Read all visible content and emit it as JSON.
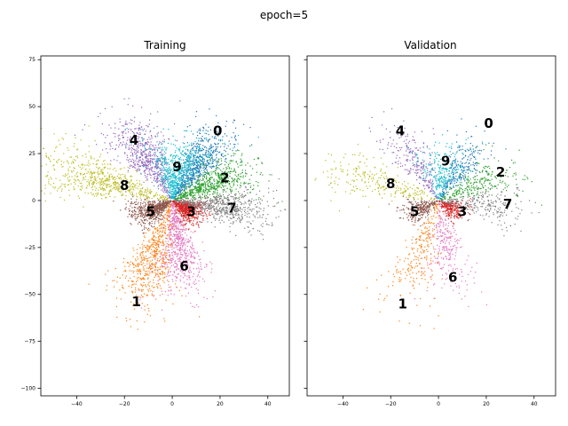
{
  "suptitle": "epoch=5",
  "colors": [
    "#1f77b4",
    "#ff7f0e",
    "#2ca02c",
    "#d62728",
    "#9467bd",
    "#8c564b",
    "#e377c2",
    "#7f7f7f",
    "#bcbd22",
    "#17becf"
  ],
  "chart_data": [
    {
      "type": "scatter",
      "title": "Training",
      "xlim": [
        -55,
        49
      ],
      "ylim": [
        -104,
        77
      ],
      "xticks": [
        -40,
        -20,
        0,
        20,
        40
      ],
      "yticks": [
        75,
        50,
        25,
        0,
        -25,
        -50,
        -75,
        -100
      ],
      "grid": false,
      "clusters": [
        {
          "label": "0",
          "center": [
            20,
            35
          ]
        },
        {
          "label": "1",
          "center": [
            -15,
            -55
          ]
        },
        {
          "label": "2",
          "center": [
            22,
            12
          ]
        },
        {
          "label": "3",
          "center": [
            8,
            -6
          ]
        },
        {
          "label": "4",
          "center": [
            -15,
            32
          ]
        },
        {
          "label": "5",
          "center": [
            -10,
            -6
          ]
        },
        {
          "label": "6",
          "center": [
            4,
            -35
          ]
        },
        {
          "label": "7",
          "center": [
            25,
            -4
          ]
        },
        {
          "label": "8",
          "center": [
            -22,
            8
          ]
        },
        {
          "label": "9",
          "center": [
            2,
            18
          ]
        }
      ],
      "label_positions": [
        [
          19,
          37
        ],
        [
          -15,
          -54
        ],
        [
          22,
          12
        ],
        [
          8,
          -6
        ],
        [
          -16,
          32
        ],
        [
          -9,
          -6
        ],
        [
          5,
          -35
        ],
        [
          25,
          -4
        ],
        [
          -20,
          8
        ],
        [
          2,
          18
        ]
      ]
    },
    {
      "type": "scatter",
      "title": "Validation",
      "xlim": [
        -55,
        49
      ],
      "ylim": [
        -104,
        77
      ],
      "xticks": [
        -40,
        -20,
        0,
        20,
        40
      ],
      "yticks": [
        75,
        50,
        25,
        0,
        -25,
        -50,
        -75,
        -100
      ],
      "grid": false,
      "clusters": [
        {
          "label": "0",
          "center": [
            20,
            35
          ]
        },
        {
          "label": "1",
          "center": [
            -15,
            -55
          ]
        },
        {
          "label": "2",
          "center": [
            22,
            12
          ]
        },
        {
          "label": "3",
          "center": [
            8,
            -6
          ]
        },
        {
          "label": "4",
          "center": [
            -15,
            32
          ]
        },
        {
          "label": "5",
          "center": [
            -10,
            -6
          ]
        },
        {
          "label": "6",
          "center": [
            4,
            -35
          ]
        },
        {
          "label": "7",
          "center": [
            25,
            -4
          ]
        },
        {
          "label": "8",
          "center": [
            -22,
            8
          ]
        },
        {
          "label": "9",
          "center": [
            2,
            18
          ]
        }
      ],
      "label_positions": [
        [
          21,
          41
        ],
        [
          -15,
          -55
        ],
        [
          26,
          15
        ],
        [
          10,
          -6
        ],
        [
          -16,
          37
        ],
        [
          -10,
          -6
        ],
        [
          6,
          -41
        ],
        [
          29,
          -2
        ],
        [
          -20,
          9
        ],
        [
          3,
          21
        ]
      ]
    }
  ]
}
